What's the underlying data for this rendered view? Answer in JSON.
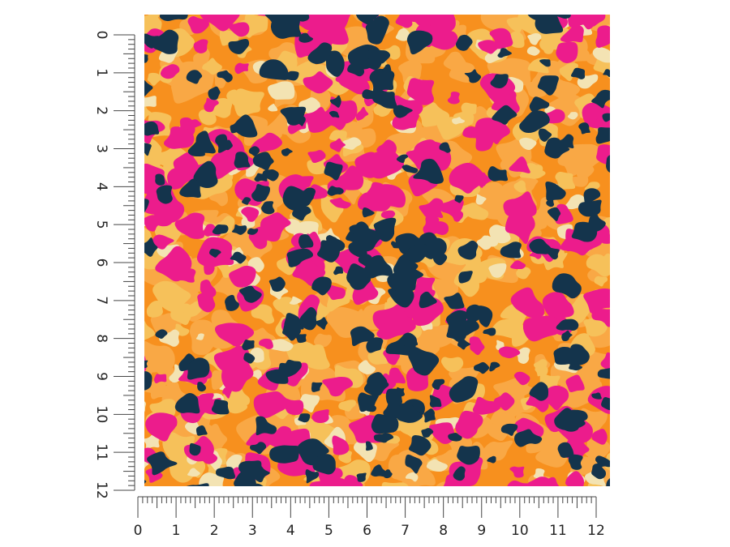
{
  "rulers": {
    "vertical": {
      "labels": [
        0,
        1,
        2,
        3,
        4,
        5,
        6,
        7,
        8,
        9,
        10,
        11,
        12
      ]
    },
    "horizontal": {
      "labels": [
        0,
        1,
        2,
        3,
        4,
        5,
        6,
        7,
        8,
        9,
        10,
        11,
        12
      ]
    }
  }
}
